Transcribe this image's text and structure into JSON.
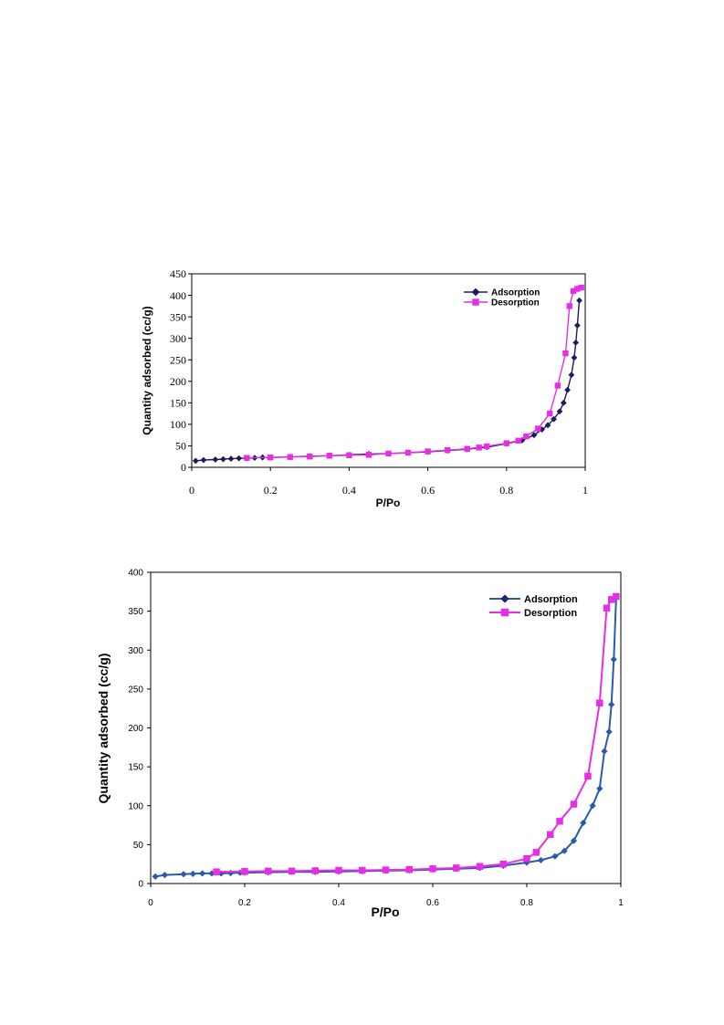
{
  "colors": {
    "adsorption_top": "#1c1c5c",
    "adsorption_bottom": "#2a5aa8",
    "adsorption_marker_bottom": "#23237a",
    "desorption": "#e62ee6",
    "axis": "#000000",
    "background": "#ffffff"
  },
  "chart_data": [
    {
      "type": "line",
      "title": "",
      "xlabel": "P/Po",
      "ylabel": "Quantity adsorbed (cc/g)",
      "xlim": [
        0,
        1
      ],
      "ylim": [
        0,
        450
      ],
      "xticks": [
        "0",
        "0.2",
        "0.4",
        "0.6",
        "0.8",
        "1"
      ],
      "yticks": [
        "0",
        "50",
        "100",
        "150",
        "200",
        "250",
        "300",
        "350",
        "400",
        "450"
      ],
      "grid": false,
      "legend": "top-right",
      "series": [
        {
          "name": "Adsorption",
          "marker": "diamond",
          "x": [
            0.01,
            0.03,
            0.06,
            0.08,
            0.1,
            0.12,
            0.14,
            0.16,
            0.18,
            0.2,
            0.25,
            0.3,
            0.35,
            0.4,
            0.45,
            0.5,
            0.55,
            0.6,
            0.65,
            0.7,
            0.75,
            0.8,
            0.84,
            0.87,
            0.89,
            0.905,
            0.92,
            0.935,
            0.945,
            0.955,
            0.965,
            0.972,
            0.976,
            0.98,
            0.985
          ],
          "y": [
            15,
            17,
            18,
            19,
            20,
            21,
            21,
            22,
            23,
            23,
            24,
            26,
            27,
            29,
            31,
            32,
            34,
            36,
            39,
            42,
            47,
            55,
            63,
            75,
            88,
            98,
            112,
            130,
            150,
            180,
            215,
            255,
            290,
            330,
            388
          ]
        },
        {
          "name": "Desorption",
          "marker": "square",
          "x": [
            0.14,
            0.2,
            0.25,
            0.3,
            0.35,
            0.4,
            0.45,
            0.5,
            0.55,
            0.6,
            0.65,
            0.7,
            0.73,
            0.75,
            0.8,
            0.83,
            0.85,
            0.88,
            0.91,
            0.93,
            0.95,
            0.96,
            0.97,
            0.98,
            0.99
          ],
          "y": [
            22,
            23,
            24,
            25,
            27,
            28,
            29,
            32,
            34,
            37,
            40,
            43,
            46,
            49,
            56,
            62,
            72,
            90,
            125,
            190,
            265,
            375,
            410,
            415,
            418
          ]
        }
      ]
    },
    {
      "type": "line",
      "title": "",
      "xlabel": "P/Po",
      "ylabel": "Quantity adsorbed (cc/g)",
      "xlim": [
        0,
        1
      ],
      "ylim": [
        0,
        400
      ],
      "xticks": [
        "0",
        "0.2",
        "0.4",
        "0.6",
        "0.8",
        "1"
      ],
      "yticks": [
        "0",
        "50",
        "100",
        "150",
        "200",
        "250",
        "300",
        "350",
        "400"
      ],
      "grid": false,
      "legend": "top-right",
      "series": [
        {
          "name": "Adsorption",
          "marker": "diamond",
          "x": [
            0.01,
            0.03,
            0.07,
            0.09,
            0.11,
            0.13,
            0.15,
            0.17,
            0.19,
            0.2,
            0.25,
            0.3,
            0.35,
            0.4,
            0.45,
            0.5,
            0.55,
            0.6,
            0.65,
            0.7,
            0.75,
            0.8,
            0.83,
            0.86,
            0.88,
            0.9,
            0.92,
            0.94,
            0.955,
            0.965,
            0.975,
            0.98,
            0.985,
            0.99
          ],
          "y": [
            9,
            11,
            12,
            12.5,
            13,
            13,
            13,
            13.5,
            14,
            14,
            14.5,
            15,
            15,
            15.5,
            16,
            16.5,
            17,
            18,
            19,
            20,
            23,
            27,
            30,
            35,
            42,
            55,
            78,
            100,
            122,
            170,
            195,
            230,
            288,
            368
          ]
        },
        {
          "name": "Desorption",
          "marker": "square",
          "x": [
            0.14,
            0.2,
            0.25,
            0.3,
            0.35,
            0.4,
            0.45,
            0.5,
            0.55,
            0.6,
            0.65,
            0.7,
            0.75,
            0.8,
            0.82,
            0.85,
            0.87,
            0.9,
            0.93,
            0.955,
            0.97,
            0.98,
            0.99
          ],
          "y": [
            15,
            15.5,
            16,
            16,
            16.5,
            17,
            17,
            17.5,
            18,
            19,
            20,
            22,
            25,
            32,
            40,
            63,
            80,
            102,
            138,
            232,
            354,
            365,
            369
          ]
        }
      ]
    }
  ]
}
